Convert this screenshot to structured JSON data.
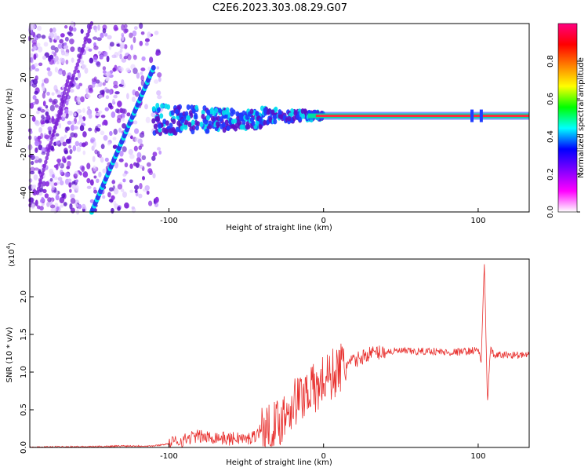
{
  "title": "C2E6.2023.303.08.29.G07",
  "colors": {
    "snr_line": "#e8312f",
    "prn_track": "#00e8e8",
    "noise": "#8a2be2"
  },
  "chart_data": [
    {
      "type": "heatmap",
      "xlabel": "Height of straight line (km)",
      "ylabel": "Frequency (Hz)",
      "xlim": [
        -190,
        133
      ],
      "ylim": [
        -50,
        48
      ],
      "x_ticks": [
        -100,
        0,
        100
      ],
      "x_tick_labels": [
        "-100",
        "0",
        "100"
      ],
      "y_ticks": [
        -40,
        -20,
        0,
        20,
        40
      ],
      "y_tick_labels": [
        "-40",
        "-20",
        "0",
        "20",
        "40"
      ],
      "colorbar": {
        "label": "Normalized spectral amplitude",
        "range": [
          0,
          1
        ],
        "ticks": [
          0.0,
          0.2,
          0.4,
          0.6,
          0.8
        ],
        "tick_labels": [
          "0.0",
          "0.2",
          "0.4",
          "0.6",
          "0.8"
        ],
        "colormap": [
          "#ffffff",
          "#ff00ff",
          "#8000ff",
          "#0000ff",
          "#00ffff",
          "#00ff00",
          "#ffff00",
          "#ff8000",
          "#ff0000",
          "#ff0080"
        ]
      },
      "diagonal_track": {
        "start": [
          -150,
          -50
        ],
        "end": [
          -110,
          25
        ]
      },
      "main_track_frequency": 0,
      "spike_heights": [
        96,
        102
      ]
    },
    {
      "type": "line",
      "xlabel": "Height of straight line (km)",
      "ylabel": "SNR (10 * v/v)",
      "ylabel_multiplier": "(x10",
      "ylabel_multiplier_exp": "4",
      "ylabel_multiplier_close": ")",
      "xlim": [
        -190,
        133
      ],
      "ylim": [
        0,
        2.5
      ],
      "x_ticks": [
        -100,
        0,
        100
      ],
      "x_tick_labels": [
        "-100",
        "0",
        "100"
      ],
      "y_ticks": [
        0,
        0.5,
        1.0,
        1.5,
        2.0
      ],
      "y_tick_labels": [
        "0.0",
        "0.5",
        "1.0",
        "1.5",
        "2.0"
      ],
      "series": [
        {
          "x": [
            -190,
            -170,
            -150,
            -130,
            -110,
            -100,
            -95,
            -90,
            -85,
            -80,
            -75,
            -70,
            -65,
            -60,
            -55,
            -50,
            -45,
            -40,
            -35,
            -30,
            -25,
            -20,
            -15,
            -10,
            -5,
            0,
            5,
            10,
            15,
            20,
            25,
            30,
            35,
            40,
            50,
            60,
            70,
            80,
            90,
            95,
            100,
            102,
            104,
            106,
            108,
            110,
            120,
            133
          ],
          "y": [
            0.0,
            0.01,
            0.01,
            0.02,
            0.02,
            0.05,
            0.08,
            0.1,
            0.14,
            0.15,
            0.13,
            0.14,
            0.12,
            0.11,
            0.13,
            0.1,
            0.15,
            0.25,
            0.22,
            0.3,
            0.45,
            0.6,
            0.65,
            0.8,
            0.75,
            0.9,
            0.95,
            1.05,
            1.1,
            1.15,
            1.2,
            1.25,
            1.26,
            1.27,
            1.28,
            1.27,
            1.28,
            1.26,
            1.27,
            1.28,
            1.3,
            1.15,
            2.45,
            0.6,
            1.3,
            1.22,
            1.23,
            1.22
          ]
        }
      ]
    }
  ]
}
